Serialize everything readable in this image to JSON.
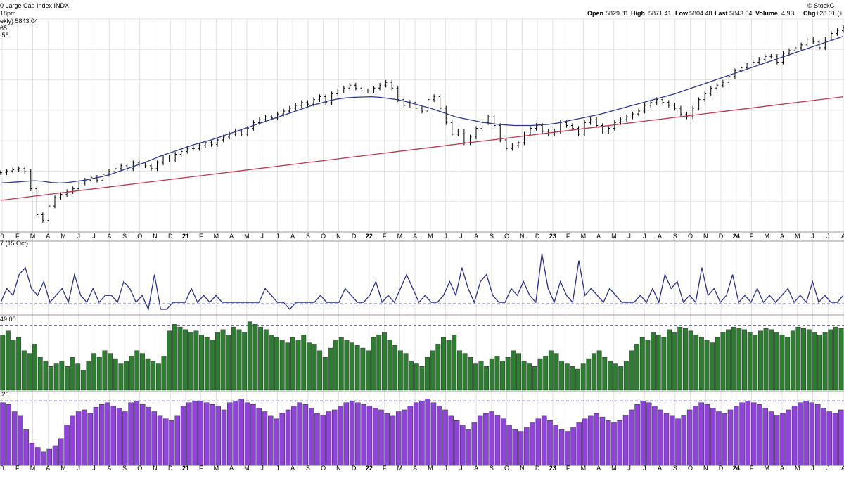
{
  "header": {
    "title": "0 Large Cap Index  INDX",
    "watermark": "© StockC",
    "subline_time": "18pm",
    "legend_price": "ekly) 5843.04",
    "legend_ma50": "65",
    "legend_ma200": ".56",
    "ohlc": [
      {
        "label": "Open",
        "value": "5829.81"
      },
      {
        "label": "High",
        "value": "5871.41"
      },
      {
        "label": "Low",
        "value": "5804.48"
      },
      {
        "label": "Last",
        "value": "5843.04"
      },
      {
        "label": "Volume",
        "value": "4.9B"
      },
      {
        "label": "Chg",
        "value": "+28.01 (+"
      }
    ]
  },
  "colors": {
    "price_bar": "#000000",
    "ma50": "#2b3a8f",
    "ma200": "#c0394b",
    "indicator_line": "#2b2f8a",
    "green_bar": "#2e7d32",
    "purple_bar": "#8e44d9",
    "grid": "#e2e2e2",
    "ref_line": "#3a3f9a"
  },
  "x_axis": {
    "labels": [
      "0",
      "F",
      "M",
      "A",
      "M",
      "J",
      "J",
      "A",
      "S",
      "O",
      "N",
      "D",
      "21",
      "F",
      "M",
      "A",
      "M",
      "J",
      "J",
      "A",
      "S",
      "O",
      "N",
      "D",
      "22",
      "F",
      "M",
      "A",
      "M",
      "J",
      "J",
      "A",
      "S",
      "O",
      "N",
      "D",
      "23",
      "F",
      "M",
      "A",
      "M",
      "J",
      "J",
      "A",
      "S",
      "O",
      "N",
      "D",
      "24",
      "F",
      "M",
      "A",
      "M",
      "J",
      "J",
      "A"
    ],
    "year_labels": [
      "21",
      "22",
      "23",
      "24"
    ]
  },
  "panels": {
    "indicator_label": "7 (15 Oct)",
    "green_label": "49.00",
    "purple_label": ".26"
  },
  "chart_data": [
    {
      "type": "line",
      "title": "0 Large Cap Index  INDX",
      "x_start": "Jan 2020 (partial)",
      "x_end": "Oct 2024",
      "series": [
        {
          "name": "ekly) 5843.04",
          "values": [
            3230,
            3260,
            3280,
            3300,
            3250,
            2950,
            2500,
            2400,
            2650,
            2800,
            2850,
            2900,
            2950,
            3050,
            3100,
            3150,
            3100,
            3200,
            3250,
            3300,
            3350,
            3300,
            3400,
            3380,
            3350,
            3300,
            3400,
            3500,
            3450,
            3550,
            3600,
            3650,
            3650,
            3700,
            3750,
            3720,
            3800,
            3850,
            3900,
            3950,
            3900,
            4000,
            4100,
            4150,
            4200,
            4180,
            4250,
            4300,
            4350,
            4400,
            4450,
            4420,
            4500,
            4550,
            4450,
            4600,
            4650,
            4700,
            4750,
            4700,
            4650,
            4650,
            4700,
            4750,
            4800,
            4700,
            4500,
            4400,
            4450,
            4350,
            4300,
            4500,
            4550,
            4350,
            4100,
            3900,
            3950,
            3750,
            3850,
            4000,
            4100,
            4200,
            4050,
            3800,
            3650,
            3700,
            3750,
            3900,
            4000,
            4050,
            3950,
            3900,
            3950,
            4100,
            4050,
            4000,
            3900,
            4100,
            4150,
            4050,
            3950,
            4000,
            4100,
            4150,
            4200,
            4250,
            4300,
            4400,
            4450,
            4500,
            4450,
            4400,
            4350,
            4250,
            4200,
            4350,
            4500,
            4600,
            4700,
            4750,
            4800,
            4900,
            5000,
            5050,
            5100,
            5150,
            5200,
            5250,
            5250,
            5150,
            5300,
            5350,
            5400,
            5450,
            5550,
            5500,
            5400,
            5550,
            5650,
            5700,
            5750
          ]
        },
        {
          "name": "",
          "values": [
            3050,
            3060,
            3070,
            3080,
            3090,
            3080,
            3060,
            3050,
            3060,
            3080,
            3100,
            3130,
            3160,
            3200,
            3250,
            3300,
            3350,
            3400,
            3460,
            3520,
            3570,
            3620,
            3670,
            3720,
            3760,
            3800,
            3850,
            3900,
            3950,
            4000,
            4050,
            4100,
            4150,
            4200,
            4250,
            4300,
            4350,
            4400,
            4440,
            4480,
            4510,
            4530,
            4540,
            4545,
            4550,
            4540,
            4520,
            4500,
            4470,
            4430,
            4390,
            4350,
            4300,
            4250,
            4200,
            4170,
            4140,
            4110,
            4090,
            4070,
            4060,
            4050,
            4050,
            4050,
            4060,
            4070,
            4090,
            4120,
            4150,
            4180,
            4210,
            4240,
            4280,
            4320,
            4360,
            4400,
            4440,
            4480,
            4520,
            4560,
            4600,
            4650,
            4700,
            4750,
            4800,
            4850,
            4900,
            4950,
            5000,
            5050,
            5100,
            5150,
            5200,
            5250,
            5300,
            5350,
            5400,
            5450,
            5500,
            5550,
            5600
          ]
        },
        {
          "name": "",
          "values": [
            2750,
            2780,
            2810,
            2840,
            2870,
            2900,
            2930,
            2960,
            2990,
            3020,
            3050,
            3080,
            3110,
            3140,
            3170,
            3200,
            3230,
            3260,
            3290,
            3320,
            3350,
            3380,
            3410,
            3440,
            3470,
            3500,
            3530,
            3560,
            3590,
            3620,
            3650,
            3680,
            3710,
            3740,
            3770,
            3800,
            3830,
            3860,
            3890,
            3920,
            3950,
            3980,
            4010,
            4040,
            4070,
            4100,
            4130,
            4160,
            4190,
            4220,
            4250,
            4280,
            4310,
            4340,
            4370,
            4400,
            4430,
            4460,
            4490,
            4520,
            4550
          ]
        }
      ],
      "ylim": [
        2200,
        5900
      ]
    },
    {
      "type": "line",
      "title": "7 (15 Oct)",
      "series": [
        {
          "name": "",
          "values": [
            1,
            3,
            2,
            5,
            6,
            3,
            2,
            4,
            1,
            2,
            3,
            1,
            5,
            2,
            1,
            3,
            1,
            2,
            2,
            1,
            4,
            3,
            1,
            2,
            0,
            5,
            0,
            0,
            1,
            1,
            1,
            3,
            1,
            2,
            1,
            2,
            1,
            1,
            1,
            1,
            1,
            1,
            1,
            3,
            2,
            1,
            1,
            0,
            1,
            1,
            1,
            1,
            2,
            1,
            1,
            1,
            3,
            2,
            1,
            1,
            2,
            4,
            1,
            2,
            1,
            3,
            5,
            3,
            1,
            2,
            1,
            1,
            2,
            4,
            2,
            6,
            3,
            1,
            4,
            5,
            2,
            1,
            1,
            3,
            2,
            4,
            2,
            1,
            8,
            3,
            1,
            4,
            2,
            1,
            7,
            2,
            3,
            2,
            1,
            3,
            2,
            1,
            1,
            1,
            2,
            1,
            3,
            1,
            5,
            3,
            4,
            1,
            2,
            1,
            6,
            2,
            3,
            1,
            2,
            5,
            1,
            2,
            1,
            3,
            1,
            2,
            1,
            2,
            3,
            1,
            2,
            1,
            4,
            1,
            2,
            1,
            1,
            2
          ]
        }
      ],
      "ref_line": 0.8
    },
    {
      "type": "bar",
      "title": "49.00",
      "ref_line": 49,
      "ylim": [
        0,
        55
      ],
      "values": [
        42,
        45,
        38,
        40,
        30,
        28,
        35,
        25,
        22,
        18,
        20,
        22,
        18,
        25,
        20,
        15,
        22,
        28,
        25,
        30,
        28,
        24,
        20,
        22,
        26,
        30,
        28,
        24,
        22,
        20,
        26,
        45,
        50,
        48,
        46,
        44,
        45,
        42,
        40,
        38,
        44,
        46,
        42,
        48,
        46,
        44,
        52,
        50,
        48,
        46,
        42,
        40,
        38,
        36,
        40,
        38,
        42,
        36,
        35,
        30,
        25,
        32,
        38,
        40,
        38,
        36,
        34,
        32,
        30,
        40,
        42,
        44,
        38,
        34,
        30,
        28,
        22,
        20,
        18,
        25,
        30,
        35,
        40,
        38,
        42,
        30,
        28,
        25,
        20,
        22,
        18,
        24,
        26,
        22,
        25,
        30,
        28,
        22,
        20,
        18,
        24,
        26,
        30,
        28,
        22,
        20,
        18,
        16,
        20,
        24,
        28,
        30,
        25,
        22,
        20,
        18,
        22,
        30,
        35,
        40,
        38,
        44,
        42,
        40,
        46,
        44,
        48,
        47,
        45,
        42,
        40,
        38,
        36,
        40,
        44,
        46,
        48,
        47,
        46,
        44,
        42,
        45,
        47,
        46,
        44,
        42,
        40,
        45,
        48,
        47,
        46,
        44,
        42,
        44,
        46,
        48,
        47
      ]
    },
    {
      "type": "bar",
      "title": ".26",
      "ref_line": 72,
      "ylim": [
        0,
        80
      ],
      "values": [
        70,
        68,
        60,
        55,
        40,
        25,
        20,
        15,
        18,
        22,
        30,
        45,
        55,
        60,
        62,
        58,
        65,
        68,
        70,
        66,
        64,
        60,
        70,
        72,
        68,
        65,
        60,
        55,
        52,
        50,
        55,
        66,
        70,
        72,
        72,
        70,
        68,
        66,
        62,
        70,
        72,
        74,
        70,
        68,
        64,
        60,
        55,
        52,
        58,
        62,
        66,
        70,
        68,
        64,
        58,
        56,
        60,
        62,
        66,
        70,
        72,
        70,
        68,
        66,
        64,
        62,
        58,
        55,
        60,
        62,
        66,
        70,
        72,
        74,
        70,
        66,
        62,
        55,
        50,
        45,
        40,
        48,
        55,
        58,
        60,
        56,
        52,
        45,
        40,
        38,
        42,
        48,
        52,
        55,
        50,
        45,
        40,
        38,
        42,
        48,
        52,
        55,
        58,
        54,
        50,
        48,
        50,
        56,
        62,
        68,
        72,
        70,
        66,
        62,
        58,
        55,
        52,
        56,
        62,
        66,
        70,
        68,
        64,
        60,
        58,
        62,
        66,
        70,
        72,
        70,
        68,
        64,
        60,
        56,
        58,
        62,
        66,
        70,
        72,
        70,
        68,
        64,
        60,
        58,
        62
      ]
    }
  ]
}
